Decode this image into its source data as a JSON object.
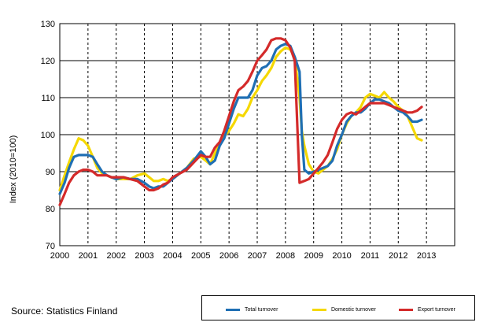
{
  "source_text": "Source: Statistics Finland",
  "chart_data": {
    "type": "line",
    "title": "",
    "ylabel": "Index (2010=100)",
    "xlabel": "",
    "ylim": [
      70,
      130
    ],
    "yticks": [
      70,
      80,
      90,
      100,
      110,
      120,
      130
    ],
    "xlim": [
      2000,
      2014
    ],
    "xticks": [
      "2000",
      "2001",
      "2002",
      "2003",
      "2004",
      "2005",
      "2006",
      "2007",
      "2008",
      "2009",
      "2010",
      "2011",
      "2012",
      "2013"
    ],
    "grid": "dashed-vertical-solid-horizontal",
    "legend_position": "bottom-right",
    "series": [
      {
        "name": "Total turnover",
        "color": "#1f6fb4",
        "points": [
          [
            2000.0,
            84
          ],
          [
            2000.17,
            87
          ],
          [
            2000.33,
            91
          ],
          [
            2000.5,
            94
          ],
          [
            2000.67,
            94.5
          ],
          [
            2000.83,
            94.5
          ],
          [
            2001.0,
            94.5
          ],
          [
            2001.17,
            94
          ],
          [
            2001.33,
            92
          ],
          [
            2001.5,
            90
          ],
          [
            2001.67,
            89
          ],
          [
            2001.83,
            88.5
          ],
          [
            2002.0,
            88
          ],
          [
            2002.25,
            88.5
          ],
          [
            2002.5,
            88
          ],
          [
            2002.75,
            88
          ],
          [
            2003.0,
            87
          ],
          [
            2003.17,
            86
          ],
          [
            2003.33,
            85.5
          ],
          [
            2003.5,
            86
          ],
          [
            2003.67,
            86
          ],
          [
            2003.83,
            87
          ],
          [
            2004.0,
            88
          ],
          [
            2004.25,
            89.5
          ],
          [
            2004.5,
            91
          ],
          [
            2004.75,
            93
          ],
          [
            2005.0,
            95.5
          ],
          [
            2005.17,
            94
          ],
          [
            2005.33,
            92
          ],
          [
            2005.5,
            93
          ],
          [
            2005.67,
            97
          ],
          [
            2005.83,
            99
          ],
          [
            2006.0,
            103
          ],
          [
            2006.17,
            107
          ],
          [
            2006.33,
            110
          ],
          [
            2006.5,
            110
          ],
          [
            2006.67,
            110
          ],
          [
            2006.83,
            112
          ],
          [
            2007.0,
            116
          ],
          [
            2007.17,
            118
          ],
          [
            2007.33,
            118.5
          ],
          [
            2007.5,
            120
          ],
          [
            2007.67,
            123
          ],
          [
            2007.83,
            124
          ],
          [
            2008.0,
            124.5
          ],
          [
            2008.17,
            124
          ],
          [
            2008.33,
            121
          ],
          [
            2008.5,
            117
          ],
          [
            2008.58,
            100
          ],
          [
            2008.67,
            90.5
          ],
          [
            2008.83,
            89.5
          ],
          [
            2009.0,
            90
          ],
          [
            2009.17,
            90.5
          ],
          [
            2009.33,
            91
          ],
          [
            2009.5,
            91.5
          ],
          [
            2009.67,
            93
          ],
          [
            2009.83,
            97
          ],
          [
            2010.0,
            100
          ],
          [
            2010.17,
            103.5
          ],
          [
            2010.33,
            105
          ],
          [
            2010.5,
            106
          ],
          [
            2010.67,
            106
          ],
          [
            2010.83,
            107
          ],
          [
            2011.0,
            108.5
          ],
          [
            2011.17,
            109.5
          ],
          [
            2011.33,
            109.5
          ],
          [
            2011.5,
            109
          ],
          [
            2011.67,
            108.5
          ],
          [
            2011.83,
            107.5
          ],
          [
            2012.0,
            106.5
          ],
          [
            2012.17,
            106
          ],
          [
            2012.33,
            105
          ],
          [
            2012.5,
            103.5
          ],
          [
            2012.67,
            103.5
          ],
          [
            2012.83,
            104
          ]
        ]
      },
      {
        "name": "Domestic turnover",
        "color": "#f5d800",
        "points": [
          [
            2000.0,
            85
          ],
          [
            2000.17,
            89
          ],
          [
            2000.33,
            92.5
          ],
          [
            2000.5,
            96
          ],
          [
            2000.67,
            99
          ],
          [
            2000.83,
            98.5
          ],
          [
            2001.0,
            97
          ],
          [
            2001.17,
            94
          ],
          [
            2001.33,
            91
          ],
          [
            2001.5,
            89.5
          ],
          [
            2001.67,
            89
          ],
          [
            2001.83,
            88.5
          ],
          [
            2002.0,
            88
          ],
          [
            2002.25,
            88
          ],
          [
            2002.5,
            88
          ],
          [
            2002.75,
            89
          ],
          [
            2003.0,
            89.5
          ],
          [
            2003.17,
            88.5
          ],
          [
            2003.33,
            87.5
          ],
          [
            2003.5,
            87.5
          ],
          [
            2003.67,
            88
          ],
          [
            2003.83,
            87.5
          ],
          [
            2004.0,
            88
          ],
          [
            2004.25,
            89.5
          ],
          [
            2004.5,
            91
          ],
          [
            2004.75,
            93.5
          ],
          [
            2005.0,
            94
          ],
          [
            2005.17,
            93
          ],
          [
            2005.33,
            92
          ],
          [
            2005.5,
            95
          ],
          [
            2005.67,
            97.5
          ],
          [
            2005.83,
            99.5
          ],
          [
            2006.0,
            101
          ],
          [
            2006.17,
            103
          ],
          [
            2006.33,
            105.5
          ],
          [
            2006.5,
            105
          ],
          [
            2006.67,
            107
          ],
          [
            2006.83,
            110
          ],
          [
            2007.0,
            112
          ],
          [
            2007.17,
            114.5
          ],
          [
            2007.33,
            116
          ],
          [
            2007.5,
            118
          ],
          [
            2007.67,
            121
          ],
          [
            2007.83,
            122.5
          ],
          [
            2008.0,
            123.5
          ],
          [
            2008.17,
            123
          ],
          [
            2008.33,
            121
          ],
          [
            2008.5,
            110
          ],
          [
            2008.58,
            101
          ],
          [
            2008.67,
            97
          ],
          [
            2008.83,
            92
          ],
          [
            2009.0,
            90
          ],
          [
            2009.17,
            89.5
          ],
          [
            2009.33,
            90.5
          ],
          [
            2009.5,
            91.5
          ],
          [
            2009.67,
            93.5
          ],
          [
            2009.83,
            96
          ],
          [
            2010.0,
            100
          ],
          [
            2010.17,
            103
          ],
          [
            2010.33,
            105
          ],
          [
            2010.5,
            106
          ],
          [
            2010.67,
            107.5
          ],
          [
            2010.83,
            110
          ],
          [
            2011.0,
            111
          ],
          [
            2011.17,
            110.5
          ],
          [
            2011.33,
            110
          ],
          [
            2011.5,
            111.5
          ],
          [
            2011.67,
            110
          ],
          [
            2011.83,
            109
          ],
          [
            2012.0,
            107.5
          ],
          [
            2012.17,
            106.5
          ],
          [
            2012.33,
            105
          ],
          [
            2012.5,
            102
          ],
          [
            2012.67,
            99
          ],
          [
            2012.83,
            98.5
          ]
        ]
      },
      {
        "name": "Export turnover",
        "color": "#d42a2a",
        "points": [
          [
            2000.0,
            81
          ],
          [
            2000.17,
            84
          ],
          [
            2000.33,
            87
          ],
          [
            2000.5,
            89
          ],
          [
            2000.67,
            90
          ],
          [
            2000.83,
            90.5
          ],
          [
            2001.0,
            90.5
          ],
          [
            2001.17,
            90
          ],
          [
            2001.33,
            89
          ],
          [
            2001.5,
            89
          ],
          [
            2001.67,
            89
          ],
          [
            2001.83,
            88.5
          ],
          [
            2002.0,
            88.5
          ],
          [
            2002.25,
            88.5
          ],
          [
            2002.5,
            88
          ],
          [
            2002.75,
            87.5
          ],
          [
            2003.0,
            86
          ],
          [
            2003.17,
            85
          ],
          [
            2003.33,
            85
          ],
          [
            2003.5,
            85.5
          ],
          [
            2003.67,
            86.5
          ],
          [
            2003.83,
            87
          ],
          [
            2004.0,
            88.5
          ],
          [
            2004.25,
            89.5
          ],
          [
            2004.5,
            90.5
          ],
          [
            2004.75,
            92.5
          ],
          [
            2005.0,
            94.5
          ],
          [
            2005.17,
            94
          ],
          [
            2005.33,
            94
          ],
          [
            2005.5,
            96.5
          ],
          [
            2005.67,
            98
          ],
          [
            2005.83,
            101
          ],
          [
            2006.0,
            105
          ],
          [
            2006.17,
            109
          ],
          [
            2006.33,
            112
          ],
          [
            2006.5,
            113
          ],
          [
            2006.67,
            114.5
          ],
          [
            2006.83,
            117
          ],
          [
            2007.0,
            120
          ],
          [
            2007.17,
            121.5
          ],
          [
            2007.33,
            123
          ],
          [
            2007.5,
            125.5
          ],
          [
            2007.67,
            126
          ],
          [
            2007.83,
            126
          ],
          [
            2008.0,
            125.5
          ],
          [
            2008.17,
            123.5
          ],
          [
            2008.33,
            120
          ],
          [
            2008.5,
            87
          ],
          [
            2008.67,
            87.5
          ],
          [
            2008.83,
            88
          ],
          [
            2009.0,
            89.5
          ],
          [
            2009.17,
            91
          ],
          [
            2009.33,
            92.5
          ],
          [
            2009.5,
            94.5
          ],
          [
            2009.67,
            98
          ],
          [
            2009.83,
            101.5
          ],
          [
            2010.0,
            104
          ],
          [
            2010.17,
            105.5
          ],
          [
            2010.33,
            106
          ],
          [
            2010.5,
            105.5
          ],
          [
            2010.67,
            106.5
          ],
          [
            2010.83,
            107.5
          ],
          [
            2011.0,
            108.5
          ],
          [
            2011.17,
            108.5
          ],
          [
            2011.33,
            108.5
          ],
          [
            2011.5,
            108.5
          ],
          [
            2011.67,
            108
          ],
          [
            2011.83,
            107.5
          ],
          [
            2012.0,
            107
          ],
          [
            2012.17,
            106.5
          ],
          [
            2012.33,
            106
          ],
          [
            2012.5,
            106
          ],
          [
            2012.67,
            106.5
          ],
          [
            2012.83,
            107.5
          ]
        ]
      }
    ]
  }
}
